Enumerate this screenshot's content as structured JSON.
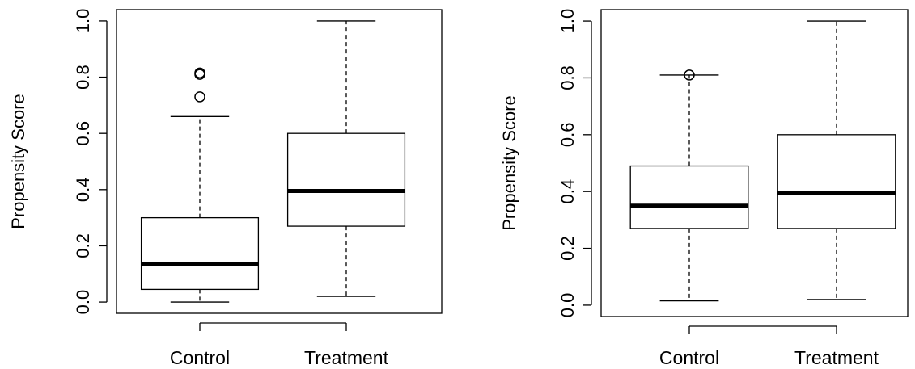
{
  "chart_data": [
    {
      "type": "box",
      "ylabel": "Propensity Score",
      "ylim": [
        0,
        1
      ],
      "yticks": [
        "0.0",
        "0.2",
        "0.4",
        "0.6",
        "0.8",
        "1.0"
      ],
      "categories": [
        "Control",
        "Treatment"
      ],
      "boxes": [
        {
          "label": "Control",
          "whisker_low": 0.0,
          "q1": 0.045,
          "median": 0.135,
          "q3": 0.3,
          "whisker_high": 0.66,
          "outliers": [
            0.73,
            0.81,
            0.815
          ]
        },
        {
          "label": "Treatment",
          "whisker_low": 0.02,
          "q1": 0.27,
          "median": 0.395,
          "q3": 0.6,
          "whisker_high": 1.0,
          "outliers": []
        }
      ]
    },
    {
      "type": "box",
      "ylabel": "Propensity Score",
      "ylim": [
        0,
        1
      ],
      "yticks": [
        "0.0",
        "0.2",
        "0.4",
        "0.6",
        "0.8",
        "1.0"
      ],
      "categories": [
        "Control",
        "Treatment"
      ],
      "boxes": [
        {
          "label": "Control",
          "whisker_low": 0.015,
          "q1": 0.27,
          "median": 0.35,
          "q3": 0.49,
          "whisker_high": 0.81,
          "outliers": [
            0.81
          ]
        },
        {
          "label": "Treatment",
          "whisker_low": 0.02,
          "q1": 0.27,
          "median": 0.395,
          "q3": 0.6,
          "whisker_high": 1.0,
          "outliers": []
        }
      ]
    }
  ]
}
